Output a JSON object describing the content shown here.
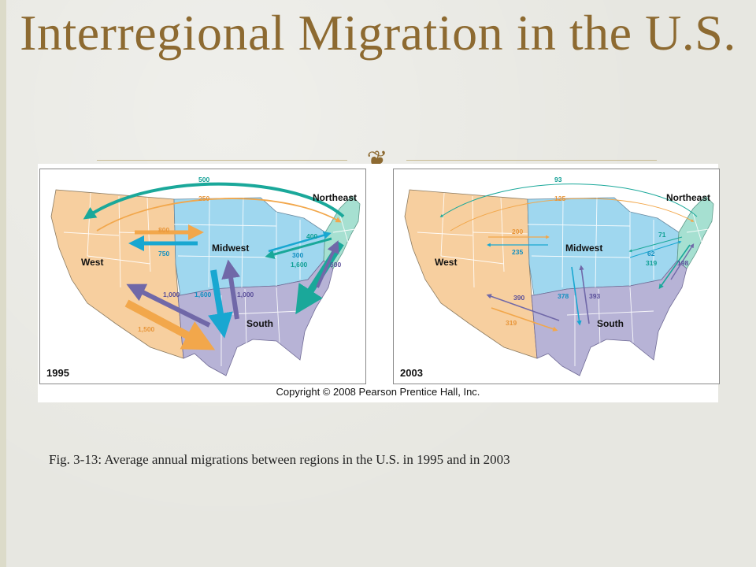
{
  "slide": {
    "title": "Interregional Migration in the U.S.",
    "caption": "Fig. 3-13: Average annual migrations between regions in the U.S. in 1995 and in 2003",
    "copyright": "Copyright © 2008 Pearson Prentice Hall, Inc.",
    "ornament_icon": "scroll-ornament-icon"
  },
  "colors": {
    "title": "#8d6a31",
    "west": "#f7cf9f",
    "midwest": "#9fd7ef",
    "northeast": "#a6e0d1",
    "south": "#b7b3d6",
    "arrow_from_west": "#f2a74b",
    "arrow_from_midwest": "#18a7d1",
    "arrow_from_northeast": "#1aa89a",
    "arrow_from_south": "#7068a8",
    "flow_label_teal": "#0f9f94",
    "flow_label_orange": "#e8963a",
    "flow_label_blue": "#128fc0",
    "flow_label_purple": "#5a4f9a"
  },
  "maps": [
    {
      "year": "1995",
      "regions": {
        "west": "West",
        "midwest": "Midwest",
        "northeast": "Northeast",
        "south": "South"
      },
      "flows": {
        "northeast_to_west": "500",
        "west_to_northeast": "250",
        "west_to_midwest": "800",
        "midwest_to_west": "750",
        "northeast_to_midwest": "400",
        "midwest_to_northeast": "300",
        "northeast_to_south": "1,600",
        "south_to_northeast": "600",
        "south_to_west": "1,000",
        "west_to_south": "1,500",
        "midwest_to_south": "1,600",
        "south_to_midwest": "1,000"
      }
    },
    {
      "year": "2003",
      "regions": {
        "west": "West",
        "midwest": "Midwest",
        "northeast": "Northeast",
        "south": "South"
      },
      "flows": {
        "northeast_to_west": "93",
        "west_to_northeast": "125",
        "west_to_midwest": "200",
        "midwest_to_west": "235",
        "northeast_to_midwest": "71",
        "midwest_to_northeast": "62",
        "northeast_to_south": "319",
        "south_to_northeast": "198",
        "south_to_west": "390",
        "west_to_south": "319",
        "midwest_to_south": "378",
        "south_to_midwest": "393"
      }
    }
  ]
}
